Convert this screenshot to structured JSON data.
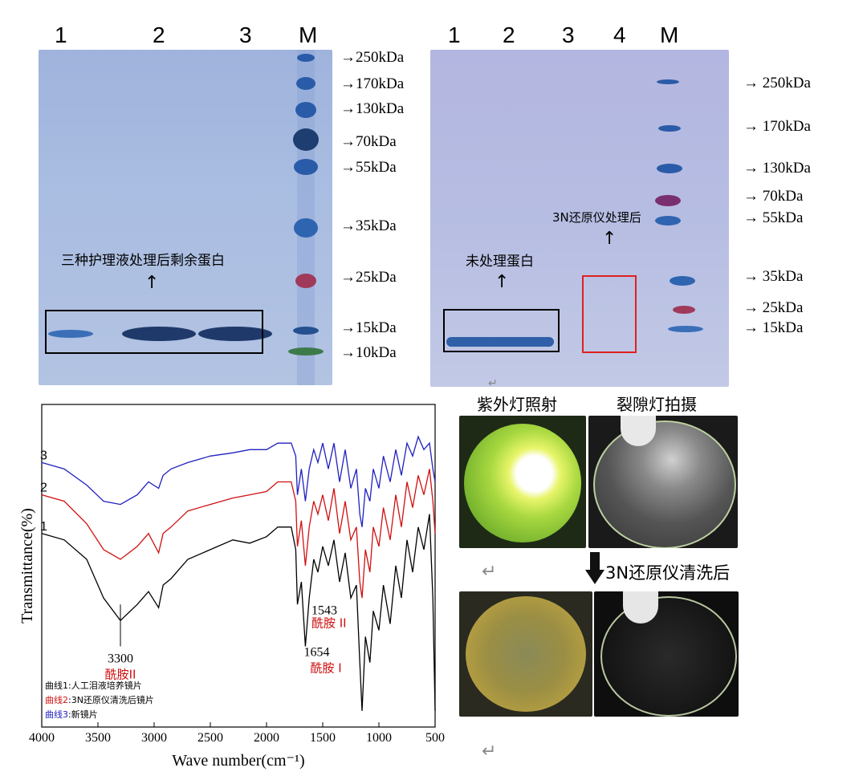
{
  "gel_left": {
    "lanes": [
      "1",
      "2",
      "3",
      "M"
    ],
    "markers": [
      "250kDa",
      "170kDa",
      "130kDa",
      "70kDa",
      "55kDa",
      "35kDa",
      "25kDa",
      "15kDa",
      "10kDa"
    ],
    "annotation": "三种护理液处理后剩余蛋白",
    "up_arrow": "↑",
    "arrow_glyph": "→"
  },
  "gel_right": {
    "lanes": [
      "1",
      "2",
      "3",
      "4",
      "M"
    ],
    "markers": [
      "250kDa",
      "170kDa",
      "130kDa",
      "70kDa",
      "55kDa",
      "35kDa",
      "25kDa",
      "15kDa"
    ],
    "annotation_left": "未处理蛋白",
    "annotation_right": "3N还原仪处理后",
    "up_arrow": "↑",
    "arrow_glyph": "→"
  },
  "spectrum": {
    "chart_data": {
      "type": "line",
      "xlabel": "Wave number(cm⁻¹)",
      "ylabel": "Transmittance(%)",
      "xlim": [
        4000,
        500
      ],
      "x_ticks": [
        "4000",
        "3500",
        "3000",
        "2500",
        "2000",
        "1500",
        "1000",
        "500"
      ],
      "series_labels": [
        "1",
        "2",
        "3"
      ],
      "series": [
        {
          "color": "#000000",
          "x": [
            4000,
            3800,
            3600,
            3450,
            3300,
            3150,
            3050,
            2960,
            2920,
            2850,
            2700,
            2500,
            2300,
            2150,
            2000,
            1900,
            1780,
            1740,
            1725,
            1690,
            1654,
            1620,
            1580,
            1543,
            1500,
            1450,
            1400,
            1350,
            1300,
            1250,
            1200,
            1170,
            1150,
            1120,
            1080,
            1050,
            1000,
            960,
            900,
            850,
            800,
            750,
            700,
            650,
            600,
            550,
            520,
            500
          ],
          "y": [
            60,
            58,
            52,
            40,
            33,
            38,
            42,
            37,
            44,
            46,
            52,
            55,
            58,
            57,
            59,
            62,
            62,
            55,
            38,
            45,
            25,
            40,
            52,
            48,
            56,
            50,
            58,
            45,
            54,
            40,
            44,
            20,
            5,
            28,
            20,
            36,
            30,
            44,
            32,
            50,
            40,
            58,
            48,
            62,
            55,
            66,
            40,
            5
          ]
        },
        {
          "color": "#d01010",
          "x": [
            4000,
            3800,
            3600,
            3450,
            3300,
            3150,
            3050,
            2960,
            2920,
            2850,
            2700,
            2500,
            2300,
            2150,
            2000,
            1900,
            1780,
            1740,
            1725,
            1690,
            1654,
            1620,
            1580,
            1543,
            1500,
            1450,
            1400,
            1350,
            1300,
            1250,
            1200,
            1170,
            1150,
            1120,
            1080,
            1050,
            1000,
            960,
            900,
            850,
            800,
            750,
            700,
            650,
            600,
            550,
            520,
            500
          ],
          "y": [
            72,
            70,
            63,
            55,
            52,
            56,
            60,
            54,
            60,
            62,
            67,
            69,
            71,
            72,
            73,
            76,
            76,
            70,
            56,
            64,
            50,
            62,
            70,
            66,
            72,
            64,
            74,
            60,
            70,
            58,
            62,
            45,
            40,
            55,
            48,
            62,
            56,
            68,
            58,
            72,
            62,
            76,
            68,
            78,
            72,
            80,
            70,
            60
          ]
        },
        {
          "color": "#2020c0",
          "x": [
            4000,
            3800,
            3600,
            3450,
            3300,
            3150,
            3050,
            2960,
            2920,
            2850,
            2700,
            2500,
            2300,
            2150,
            2000,
            1900,
            1780,
            1740,
            1725,
            1690,
            1654,
            1620,
            1580,
            1543,
            1500,
            1450,
            1400,
            1350,
            1300,
            1250,
            1200,
            1170,
            1150,
            1120,
            1080,
            1050,
            1000,
            960,
            900,
            850,
            800,
            750,
            700,
            650,
            600,
            550,
            520,
            500
          ],
          "y": [
            82,
            80,
            75,
            70,
            69,
            72,
            76,
            74,
            78,
            80,
            82,
            84,
            85,
            86,
            86,
            88,
            88,
            84,
            72,
            80,
            70,
            80,
            86,
            82,
            88,
            80,
            88,
            76,
            86,
            74,
            80,
            66,
            62,
            74,
            70,
            80,
            74,
            84,
            76,
            86,
            78,
            88,
            84,
            90,
            86,
            88,
            80,
            76
          ]
        }
      ],
      "annotations": [
        {
          "value": "3300",
          "name": "酰胺II"
        },
        {
          "value": "1654",
          "name": "酰胺 I"
        },
        {
          "value": "1543",
          "name": "酰胺 II"
        }
      ],
      "legend": [
        {
          "label": "曲线1",
          "text": ":人工泪液培养镜片",
          "color": "#000000"
        },
        {
          "label": "曲线2",
          "text": ":3N还原仪清洗后镜片",
          "color": "#d01010"
        },
        {
          "label": "曲线3",
          "text": ":新镜片",
          "color": "#2020c0"
        }
      ]
    }
  },
  "photos": {
    "header_left": "紫外灯照射",
    "header_right": "裂隙灯拍摄",
    "caption": "3N还原仪清洗后",
    "return_glyph": "↵",
    "cursor": "↓"
  },
  "colors": {
    "gel": "#a9b9de",
    "gel_right": "#b4b9e0",
    "band_dark": "#1f3a6a",
    "band_blue": "#3a6fb8",
    "band_red": "#a83a5a",
    "box_red": "#e02020"
  }
}
